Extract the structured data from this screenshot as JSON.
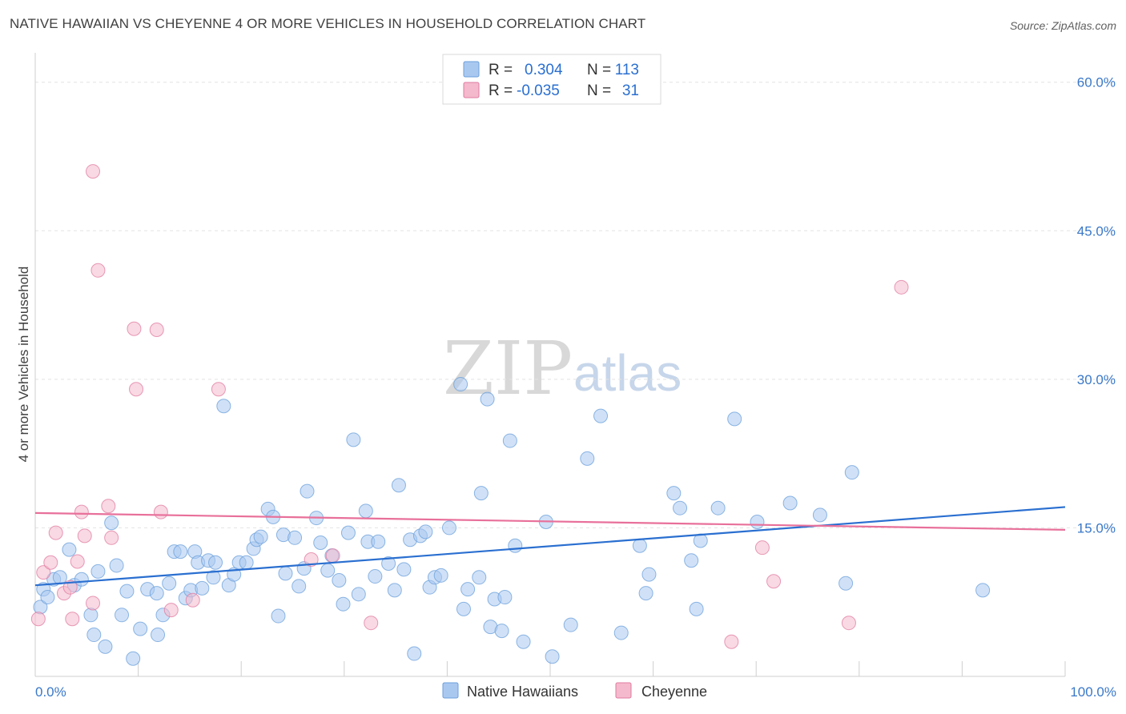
{
  "header": {
    "title": "NATIVE HAWAIIAN VS CHEYENNE 4 OR MORE VEHICLES IN HOUSEHOLD CORRELATION CHART",
    "source": "Source: ZipAtlas.com"
  },
  "watermark": {
    "zip": "ZIP",
    "atlas": "atlas"
  },
  "legend": {
    "rows": [
      {
        "r_label": "R =",
        "r_value": "0.304",
        "n_label": "N =",
        "n_value": "113",
        "color": "#a9c8f0"
      },
      {
        "r_label": "R =",
        "r_value": "-0.035",
        "n_label": "N =",
        "n_value": "31",
        "color": "#f4b9cc"
      }
    ]
  },
  "bottom_legend": [
    {
      "label": "Native Hawaiians",
      "color": "#a9c8f0"
    },
    {
      "label": "Cheyenne",
      "color": "#f4b9cc"
    }
  ],
  "chart_data": {
    "type": "scatter",
    "title": "NATIVE HAWAIIAN VS CHEYENNE 4 OR MORE VEHICLES IN HOUSEHOLD CORRELATION CHART",
    "xlabel": "",
    "ylabel": "4 or more Vehicles in Household",
    "xlim": [
      0,
      100
    ],
    "ylim": [
      0,
      62
    ],
    "y_ticks": [
      {
        "value": 15,
        "label": "15.0%"
      },
      {
        "value": 30,
        "label": "30.0%"
      },
      {
        "value": 45,
        "label": "45.0%"
      },
      {
        "value": 60,
        "label": "60.0%"
      }
    ],
    "x_ticks": [
      {
        "value": 0,
        "label": "0.0%"
      },
      {
        "value": 100,
        "label": "100.0%"
      }
    ],
    "grid": true,
    "legend_placement": "top-center",
    "series": [
      {
        "name": "Native Hawaiians",
        "color": "#a9c8f0",
        "stroke": "#6a9fdb",
        "trend": {
          "x": [
            0,
            100
          ],
          "y": [
            9.2,
            17.1
          ],
          "color": "#2a6fd0"
        },
        "points": [
          [
            0.5,
            7.0
          ],
          [
            0.8,
            8.8
          ],
          [
            1.2,
            8.0
          ],
          [
            1.8,
            9.8
          ],
          [
            2.4,
            10.0
          ],
          [
            3.3,
            12.8
          ],
          [
            3.8,
            9.2
          ],
          [
            4.5,
            9.8
          ],
          [
            5.4,
            6.2
          ],
          [
            5.7,
            4.2
          ],
          [
            6.1,
            10.6
          ],
          [
            6.8,
            3.0
          ],
          [
            7.4,
            15.5
          ],
          [
            7.9,
            11.2
          ],
          [
            8.4,
            6.2
          ],
          [
            8.9,
            8.6
          ],
          [
            9.5,
            1.8
          ],
          [
            10.2,
            4.8
          ],
          [
            10.9,
            8.8
          ],
          [
            11.8,
            8.4
          ],
          [
            11.9,
            4.2
          ],
          [
            12.4,
            6.2
          ],
          [
            13.0,
            9.4
          ],
          [
            13.5,
            12.6
          ],
          [
            14.1,
            12.6
          ],
          [
            14.6,
            7.9
          ],
          [
            15.1,
            8.7
          ],
          [
            15.5,
            12.6
          ],
          [
            15.8,
            11.5
          ],
          [
            16.2,
            8.9
          ],
          [
            16.8,
            11.7
          ],
          [
            17.3,
            10.0
          ],
          [
            17.5,
            11.5
          ],
          [
            18.3,
            27.3
          ],
          [
            18.8,
            9.2
          ],
          [
            19.3,
            10.3
          ],
          [
            19.8,
            11.5
          ],
          [
            20.5,
            11.5
          ],
          [
            21.2,
            12.9
          ],
          [
            21.5,
            13.8
          ],
          [
            21.9,
            14.1
          ],
          [
            22.6,
            16.9
          ],
          [
            23.1,
            16.1
          ],
          [
            23.6,
            6.1
          ],
          [
            24.1,
            14.3
          ],
          [
            24.3,
            10.4
          ],
          [
            25.2,
            14.0
          ],
          [
            25.6,
            9.1
          ],
          [
            26.1,
            10.9
          ],
          [
            26.4,
            18.7
          ],
          [
            27.3,
            16.0
          ],
          [
            27.7,
            13.5
          ],
          [
            28.4,
            10.7
          ],
          [
            28.8,
            12.2
          ],
          [
            29.5,
            9.7
          ],
          [
            29.9,
            7.3
          ],
          [
            30.4,
            14.5
          ],
          [
            30.9,
            23.9
          ],
          [
            31.4,
            8.3
          ],
          [
            32.1,
            16.7
          ],
          [
            32.3,
            13.6
          ],
          [
            33.0,
            10.1
          ],
          [
            33.3,
            13.6
          ],
          [
            34.3,
            11.4
          ],
          [
            34.9,
            8.7
          ],
          [
            35.3,
            19.3
          ],
          [
            35.8,
            10.8
          ],
          [
            36.4,
            13.8
          ],
          [
            36.8,
            2.3
          ],
          [
            37.4,
            14.2
          ],
          [
            37.9,
            14.6
          ],
          [
            38.3,
            9.0
          ],
          [
            38.8,
            10.0
          ],
          [
            39.4,
            10.2
          ],
          [
            40.2,
            15.0
          ],
          [
            41.3,
            29.5
          ],
          [
            41.6,
            6.8
          ],
          [
            42.0,
            8.8
          ],
          [
            43.1,
            10.0
          ],
          [
            43.3,
            18.5
          ],
          [
            43.9,
            28.0
          ],
          [
            44.2,
            5.0
          ],
          [
            44.6,
            7.8
          ],
          [
            45.3,
            4.6
          ],
          [
            45.6,
            8.0
          ],
          [
            46.1,
            23.8
          ],
          [
            46.6,
            13.2
          ],
          [
            47.4,
            3.5
          ],
          [
            49.6,
            15.6
          ],
          [
            50.2,
            2.0
          ],
          [
            52.0,
            5.2
          ],
          [
            53.6,
            22.0
          ],
          [
            54.9,
            26.3
          ],
          [
            56.9,
            4.4
          ],
          [
            58.7,
            13.2
          ],
          [
            59.3,
            8.4
          ],
          [
            59.6,
            10.3
          ],
          [
            62.0,
            18.5
          ],
          [
            62.6,
            17.0
          ],
          [
            63.7,
            11.7
          ],
          [
            64.2,
            6.8
          ],
          [
            64.6,
            13.7
          ],
          [
            66.3,
            17.0
          ],
          [
            67.9,
            26.0
          ],
          [
            70.1,
            15.6
          ],
          [
            73.3,
            17.5
          ],
          [
            76.2,
            16.3
          ],
          [
            78.7,
            9.4
          ],
          [
            79.3,
            20.6
          ],
          [
            92.0,
            8.7
          ]
        ]
      },
      {
        "name": "Cheyenne",
        "color": "#f4b9cc",
        "stroke": "#e07aa0",
        "trend": {
          "x": [
            0,
            100
          ],
          "y": [
            16.5,
            14.8
          ],
          "color": "#e8709a"
        },
        "points": [
          [
            0.3,
            5.8
          ],
          [
            0.8,
            10.5
          ],
          [
            1.5,
            11.5
          ],
          [
            2.0,
            14.5
          ],
          [
            2.8,
            8.4
          ],
          [
            3.4,
            9.0
          ],
          [
            3.6,
            5.8
          ],
          [
            4.1,
            11.6
          ],
          [
            4.5,
            16.6
          ],
          [
            4.8,
            14.2
          ],
          [
            5.6,
            7.4
          ],
          [
            5.6,
            51.0
          ],
          [
            6.1,
            41.0
          ],
          [
            7.1,
            17.2
          ],
          [
            7.4,
            14.0
          ],
          [
            9.6,
            35.1
          ],
          [
            9.8,
            29.0
          ],
          [
            11.8,
            35.0
          ],
          [
            12.2,
            16.6
          ],
          [
            13.2,
            6.7
          ],
          [
            15.3,
            7.7
          ],
          [
            17.8,
            29.0
          ],
          [
            26.8,
            11.8
          ],
          [
            28.9,
            12.2
          ],
          [
            32.6,
            5.4
          ],
          [
            67.6,
            3.5
          ],
          [
            70.6,
            13.0
          ],
          [
            71.7,
            9.6
          ],
          [
            79.0,
            5.4
          ],
          [
            84.1,
            39.3
          ]
        ]
      }
    ]
  }
}
